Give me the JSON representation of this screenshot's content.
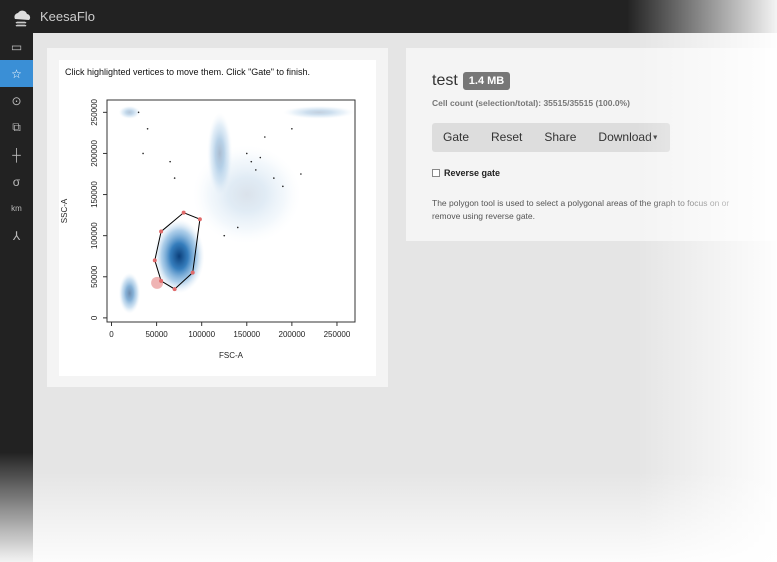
{
  "app": {
    "brand": "KeesaFlo",
    "logo_icon": "cloud-logo-icon"
  },
  "sidebar": {
    "items": [
      {
        "name": "rectangle-tool-icon",
        "glyph": "▭",
        "active": false
      },
      {
        "name": "polygon-tool-icon",
        "glyph": "☆",
        "active": true
      },
      {
        "name": "oval-tool-icon",
        "glyph": "⊙",
        "active": false
      },
      {
        "name": "layers-tool-icon",
        "glyph": "⧉",
        "active": false
      },
      {
        "name": "quadrant-tool-icon",
        "glyph": "┼",
        "active": false
      },
      {
        "name": "sigma-tool-icon",
        "glyph": "σ",
        "active": false
      },
      {
        "name": "kmeans-tool-icon",
        "glyph": "km",
        "active": false
      },
      {
        "name": "axes-tool-icon",
        "glyph": "⅄",
        "active": false
      }
    ]
  },
  "plot": {
    "instructions": "Click highlighted vertices to move them. Click \"Gate\" to finish."
  },
  "info": {
    "title": "test",
    "size": "1.4 MB",
    "cell_count": "Cell count (selection/total): 35515/35515 (100.0%)",
    "buttons": {
      "gate": "Gate",
      "reset": "Reset",
      "share": "Share",
      "download": "Download"
    },
    "reverse_gate_label": "Reverse gate",
    "help": "The polygon tool is used to select a polygonal areas of the graph to focus on or remove using reverse gate."
  },
  "chart_data": {
    "type": "heatmap",
    "xlabel": "FSC-A",
    "ylabel": "SSC-A",
    "xlim": [
      -5000,
      270000
    ],
    "ylim": [
      -5000,
      265000
    ],
    "xticks": [
      0,
      50000,
      100000,
      150000,
      200000,
      250000
    ],
    "yticks": [
      0,
      50000,
      100000,
      150000,
      200000,
      250000
    ],
    "xtick_labels": [
      "0",
      "50000",
      "100000",
      "150000",
      "200000",
      "250000"
    ],
    "ytick_labels": [
      "0",
      "50000",
      "100000",
      "150000",
      "200000",
      "250000"
    ],
    "colors": {
      "density": "#1f6fb5",
      "gate_line": "#000000",
      "vertex": "#e06a6a"
    },
    "gate_polygon": [
      [
        55000,
        105000
      ],
      [
        80000,
        128000
      ],
      [
        98000,
        120000
      ],
      [
        90000,
        55000
      ],
      [
        70000,
        35000
      ],
      [
        55000,
        45000
      ],
      [
        48000,
        70000
      ]
    ],
    "density_blobs": [
      {
        "x": 75000,
        "y": 75000,
        "rx": 28000,
        "ry": 45000,
        "w": 1.0
      },
      {
        "x": 20000,
        "y": 30000,
        "rx": 12000,
        "ry": 25000,
        "w": 0.6
      },
      {
        "x": 120000,
        "y": 200000,
        "rx": 14000,
        "ry": 50000,
        "w": 0.35
      },
      {
        "x": 150000,
        "y": 150000,
        "rx": 60000,
        "ry": 60000,
        "w": 0.15
      },
      {
        "x": 230000,
        "y": 250000,
        "rx": 40000,
        "ry": 8000,
        "w": 0.25
      },
      {
        "x": 20000,
        "y": 250000,
        "rx": 12000,
        "ry": 8000,
        "w": 0.3
      }
    ]
  }
}
